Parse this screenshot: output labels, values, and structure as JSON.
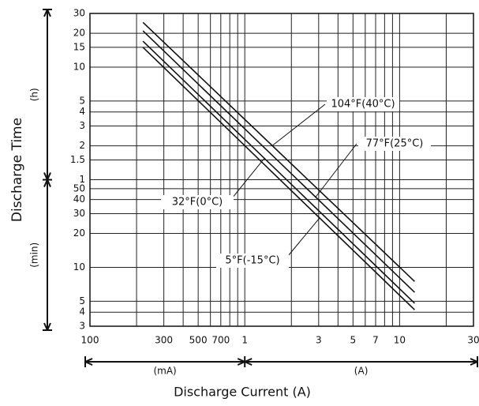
{
  "chart_data": {
    "type": "line",
    "title": "Discharge Time",
    "x_label": "Discharge Current (A)",
    "y_unit_upper": "(h)",
    "y_unit_lower": "(min)",
    "x_unit_left": "(mA)",
    "x_unit_right": "(A)",
    "log_x": true,
    "log_y": true,
    "grid": true,
    "xlim": [
      0.1,
      30
    ],
    "xticks": [
      {
        "value": 0.1,
        "label": "100"
      },
      {
        "value": 0.3,
        "label": "300"
      },
      {
        "value": 0.5,
        "label": "500"
      },
      {
        "value": 0.7,
        "label": "700"
      },
      1,
      3,
      5,
      7,
      10,
      30
    ],
    "xgrid_minor": [
      0.2,
      0.4,
      0.6,
      0.8,
      0.9,
      2,
      4,
      6,
      8,
      9,
      20
    ],
    "ylim": [
      3,
      1800
    ],
    "yticks": [
      {
        "value": 1800,
        "label": "30"
      },
      {
        "value": 1200,
        "label": "20"
      },
      {
        "value": 900,
        "label": "15"
      },
      {
        "value": 600,
        "label": "10"
      },
      {
        "value": 300,
        "label": "5"
      },
      {
        "value": 240,
        "label": "4"
      },
      {
        "value": 180,
        "label": "3"
      },
      {
        "value": 120,
        "label": "2"
      },
      {
        "value": 90,
        "label": "1.5"
      },
      {
        "value": 60,
        "label": "1"
      },
      50,
      40,
      30,
      20,
      10,
      5,
      4,
      3
    ],
    "x": [
      0.22,
      12.5
    ],
    "series": [
      {
        "name": "104°F(40°C)",
        "color": "#111111",
        "values": [
          1500,
          7.5
        ]
      },
      {
        "name": "77°F(25°C)",
        "color": "#111111",
        "values": [
          1260,
          6
        ]
      },
      {
        "name": "32°F(0°C)",
        "color": "#111111",
        "values": [
          1020,
          4.8
        ]
      },
      {
        "name": "5°F(-15°C)",
        "color": "#111111",
        "values": [
          900,
          4.2
        ]
      }
    ]
  }
}
